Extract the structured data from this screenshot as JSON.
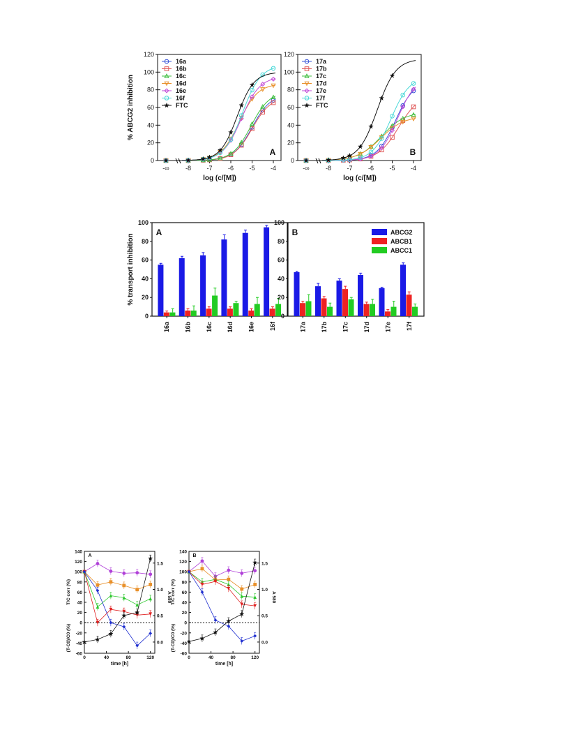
{
  "figure1": {
    "ylabel": "% ABCG2 inhibition",
    "xlabel": "log (c/[M])",
    "inf_label": "-∞",
    "panels": [
      {
        "panel_label": "A",
        "legend": [
          "16a",
          "16b",
          "16c",
          "16d",
          "16e",
          "16f",
          "FTC"
        ],
        "colors": [
          "#3a55d8",
          "#e05a5a",
          "#3fbf3f",
          "#e8902a",
          "#c24bd8",
          "#4ad8d8",
          "#111111"
        ],
        "markers": [
          "circle",
          "square",
          "triangle",
          "tri-down",
          "diamond",
          "circle",
          "star"
        ],
        "top": [
          75,
          72,
          78,
          87,
          95,
          108,
          100
        ],
        "ec50": [
          -5.0,
          -5.0,
          -5.05,
          -5.6,
          -5.5,
          -5.45,
          -5.7
        ],
        "hill": [
          1.0,
          1.0,
          1.0,
          1.0,
          1.0,
          1.0,
          1.1
        ]
      },
      {
        "panel_label": "B",
        "legend": [
          "17a",
          "17b",
          "17c",
          "17d",
          "17e",
          "17f",
          "FTC"
        ],
        "colors": [
          "#3a55d8",
          "#e05a5a",
          "#3fbf3f",
          "#e8902a",
          "#c24bd8",
          "#4ad8d8",
          "#111111"
        ],
        "markers": [
          "circle",
          "square",
          "triangle",
          "tri-down",
          "diamond",
          "circle",
          "star"
        ],
        "top": [
          90,
          75,
          55,
          50,
          95,
          95,
          115
        ],
        "ec50": [
          -4.85,
          -4.7,
          -5.5,
          -5.55,
          -4.75,
          -5.05,
          -5.7
        ],
        "hill": [
          1.0,
          0.9,
          0.8,
          0.8,
          1.0,
          1.0,
          1.0
        ]
      }
    ],
    "xticks": [
      "-8",
      "-7",
      "-6",
      "-5",
      "-4"
    ],
    "yticks": [
      "0",
      "20",
      "40",
      "60",
      "80",
      "100",
      "120"
    ]
  },
  "figure2": {
    "ylabel": "% transport inhibition",
    "yticks": [
      "0",
      "20",
      "40",
      "60",
      "80",
      "100"
    ],
    "legend": [
      "ABCG2",
      "ABCB1",
      "ABCC1"
    ],
    "colors": [
      "#1a1ae6",
      "#ee2222",
      "#22cc22"
    ],
    "panels": [
      {
        "panel_label": "A",
        "categories": [
          "16a",
          "16b",
          "16c",
          "16d",
          "16e",
          "16f"
        ],
        "series": [
          {
            "name": "ABCG2",
            "values": [
              55,
              62,
              65,
              82,
              89,
              95
            ],
            "err": [
              1.5,
              2,
              3,
              5,
              3,
              2
            ]
          },
          {
            "name": "ABCB1",
            "values": [
              4,
              6,
              8,
              8,
              6,
              8
            ],
            "err": [
              1.5,
              2,
              2,
              2,
              2,
              2
            ]
          },
          {
            "name": "ABCC1",
            "values": [
              4,
              6,
              22,
              14,
              13,
              13
            ],
            "err": [
              4,
              5,
              8,
              2,
              7,
              6
            ]
          }
        ]
      },
      {
        "panel_label": "B",
        "categories": [
          "17a",
          "17b",
          "17c",
          "17d",
          "17e",
          "17f"
        ],
        "series": [
          {
            "name": "ABCG2",
            "values": [
              47,
              32,
              38,
              44,
              30,
              55
            ],
            "err": [
              1,
              3,
              2,
              2,
              1,
              2
            ]
          },
          {
            "name": "ABCB1",
            "values": [
              14,
              19,
              29,
              13,
              5,
              23
            ],
            "err": [
              2,
              2,
              3,
              2,
              2,
              3
            ]
          },
          {
            "name": "ABCC1",
            "values": [
              16,
              10,
              18,
              13,
              10,
              10
            ],
            "err": [
              7,
              4,
              2,
              5,
              6,
              3
            ]
          }
        ]
      }
    ]
  },
  "figure3": {
    "ylabel_upper": "T/C corr (%)",
    "ylabel_lower": "(T-C0)/C0 (%)",
    "ylabel_right": "A 580",
    "xlabel": "time [h]",
    "yticks": [
      "-60",
      "-40",
      "-20",
      "0",
      "20",
      "40",
      "60",
      "80",
      "100",
      "120",
      "140"
    ],
    "right_ticks": [
      "0.0",
      "0.5",
      "1.0",
      "1.5"
    ],
    "xticks": [
      "0",
      "40",
      "80",
      "120"
    ],
    "panels": [
      {
        "panel_label": "A",
        "time": [
          0,
          24,
          48,
          72,
          96,
          120
        ],
        "series": [
          {
            "color": "#b040d8",
            "values": [
              100,
              116,
              101,
              97,
              98,
              95
            ]
          },
          {
            "color": "#e8902a",
            "values": [
              100,
              74,
              80,
              73,
              65,
              75
            ]
          },
          {
            "color": "#2ec82e",
            "values": [
              100,
              31,
              53,
              49,
              35,
              47
            ]
          },
          {
            "color": "#e02020",
            "values": [
              100,
              0,
              26,
              22,
              15,
              17
            ]
          },
          {
            "color": "#2030d0",
            "values": [
              100,
              63,
              0,
              -8,
              -45,
              -21
            ]
          },
          {
            "color": "#111111",
            "values": [
              -38,
              -33,
              -22,
              14,
              20,
              126
            ]
          }
        ]
      },
      {
        "panel_label": "B",
        "time": [
          0,
          24,
          48,
          72,
          96,
          120
        ],
        "series": [
          {
            "color": "#b040d8",
            "values": [
              100,
              121,
              91,
              103,
              97,
              102
            ]
          },
          {
            "color": "#e8902a",
            "values": [
              100,
              106,
              84,
              85,
              66,
              75
            ]
          },
          {
            "color": "#2ec82e",
            "values": [
              100,
              80,
              85,
              75,
              52,
              50
            ]
          },
          {
            "color": "#e02020",
            "values": [
              100,
              75,
              81,
              67,
              36,
              33
            ]
          },
          {
            "color": "#2030d0",
            "values": [
              100,
              60,
              5,
              -7,
              -36,
              -26
            ]
          },
          {
            "color": "#111111",
            "values": [
              -37,
              -31,
              -19,
              3,
              17,
              118
            ]
          }
        ]
      }
    ]
  }
}
